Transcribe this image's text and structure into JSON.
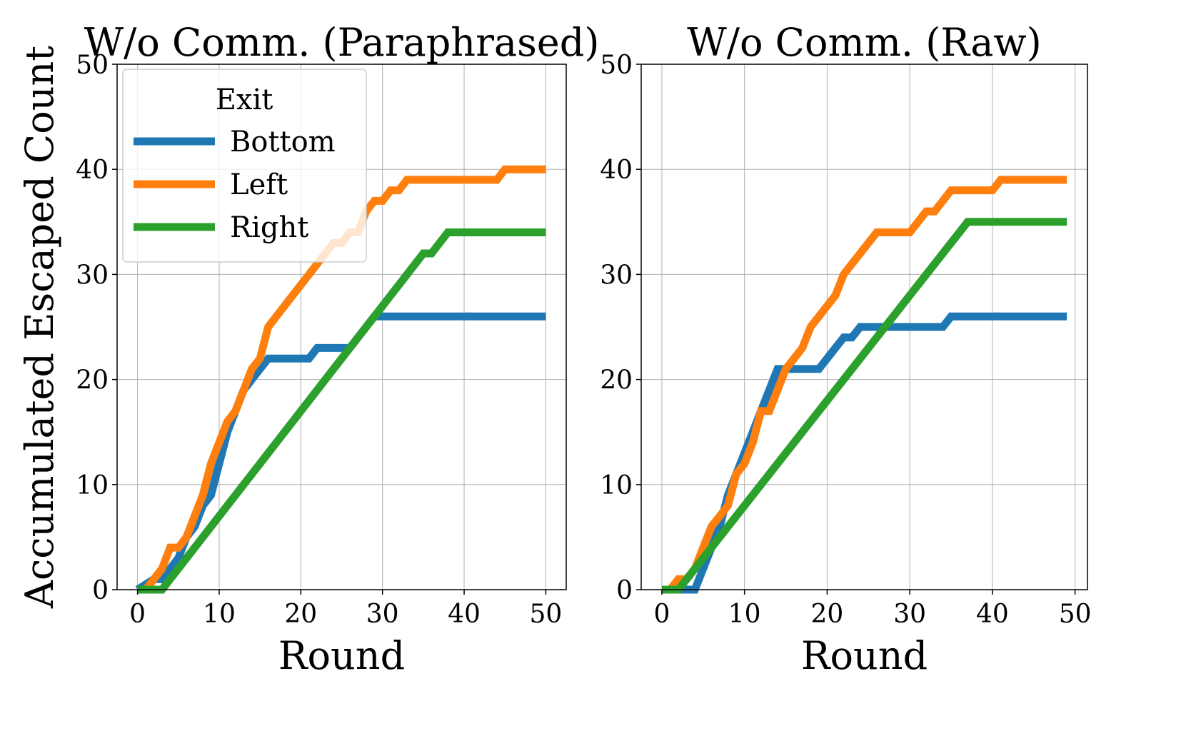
{
  "chart_data": [
    {
      "type": "line",
      "title": "W/o Comm. (Paraphrased)",
      "xlabel": "Round",
      "ylabel": "Accumulated Escaped Count",
      "xlim": [
        -2.5,
        52.5
      ],
      "ylim": [
        0,
        50
      ],
      "xticks": [
        0,
        10,
        20,
        30,
        40,
        50
      ],
      "yticks": [
        0,
        10,
        20,
        30,
        40,
        50
      ],
      "grid": true,
      "legend": {
        "title": "Exit",
        "placement": "top-left"
      },
      "series": [
        {
          "name": "Bottom",
          "color": "#1f77b4",
          "x": [
            0,
            2,
            3,
            4,
            5,
            6,
            7,
            8,
            9,
            10,
            11,
            12,
            13,
            14,
            15,
            16,
            19,
            20,
            21,
            22,
            26,
            27,
            28,
            29,
            50
          ],
          "y": [
            0,
            1,
            1,
            2,
            3,
            5,
            6,
            8,
            9,
            12,
            15,
            17,
            19,
            20,
            21,
            22,
            22,
            22,
            22,
            23,
            23,
            24,
            25,
            26,
            26
          ]
        },
        {
          "name": "Left",
          "color": "#ff7f0e",
          "x": [
            0,
            1,
            2,
            3,
            4,
            5,
            6,
            7,
            8,
            9,
            10,
            11,
            12,
            13,
            14,
            15,
            16,
            17,
            18,
            19,
            20,
            21,
            22,
            23,
            24,
            25,
            26,
            27,
            28,
            29,
            30,
            31,
            32,
            33,
            44,
            45,
            50
          ],
          "y": [
            0,
            0,
            1,
            2,
            4,
            4,
            5,
            7,
            9,
            12,
            14,
            16,
            17,
            19,
            21,
            22,
            25,
            26,
            27,
            28,
            29,
            30,
            31,
            32,
            33,
            33,
            34,
            34,
            36,
            37,
            37,
            38,
            38,
            39,
            39,
            40,
            40
          ]
        },
        {
          "name": "Right",
          "color": "#2ca02c",
          "x": [
            0,
            3,
            35,
            36,
            38,
            50
          ],
          "y": [
            0,
            0,
            32,
            32,
            34,
            34
          ]
        }
      ]
    },
    {
      "type": "line",
      "title": "W/o Comm. (Raw)",
      "xlabel": "Round",
      "ylabel": "",
      "xlim": [
        -2.5,
        51.5
      ],
      "ylim": [
        0,
        50
      ],
      "xticks": [
        0,
        10,
        20,
        30,
        40,
        50
      ],
      "yticks": [
        0,
        10,
        20,
        30,
        40,
        50
      ],
      "grid": true,
      "series": [
        {
          "name": "Bottom",
          "color": "#1f77b4",
          "x": [
            0,
            3,
            4,
            5,
            6,
            7,
            8,
            9,
            10,
            11,
            12,
            13,
            14,
            15,
            16,
            17,
            18,
            19,
            20,
            21,
            22,
            23,
            24,
            34,
            35,
            49
          ],
          "y": [
            0,
            0,
            0,
            2,
            4,
            6,
            9,
            11,
            13,
            15,
            17,
            19,
            21,
            21,
            21,
            21,
            21,
            21,
            22,
            23,
            24,
            24,
            25,
            25,
            26,
            26
          ]
        },
        {
          "name": "Left",
          "color": "#ff7f0e",
          "x": [
            0,
            1,
            2,
            3,
            4,
            5,
            6,
            7,
            8,
            9,
            10,
            11,
            12,
            13,
            14,
            15,
            16,
            17,
            18,
            19,
            20,
            21,
            22,
            23,
            24,
            25,
            26,
            27,
            28,
            29,
            30,
            31,
            32,
            33,
            34,
            35,
            36,
            37,
            38,
            39,
            40,
            41,
            49
          ],
          "y": [
            0,
            0,
            1,
            1,
            2,
            4,
            6,
            7,
            8,
            11,
            12,
            14,
            17,
            17,
            19,
            21,
            22,
            23,
            25,
            26,
            27,
            28,
            30,
            31,
            32,
            33,
            34,
            34,
            34,
            34,
            34,
            35,
            36,
            36,
            37,
            38,
            38,
            38,
            38,
            38,
            38,
            39,
            39
          ]
        },
        {
          "name": "Right",
          "color": "#2ca02c",
          "x": [
            0,
            2,
            37,
            49
          ],
          "y": [
            0,
            0,
            35,
            35
          ]
        }
      ]
    }
  ]
}
